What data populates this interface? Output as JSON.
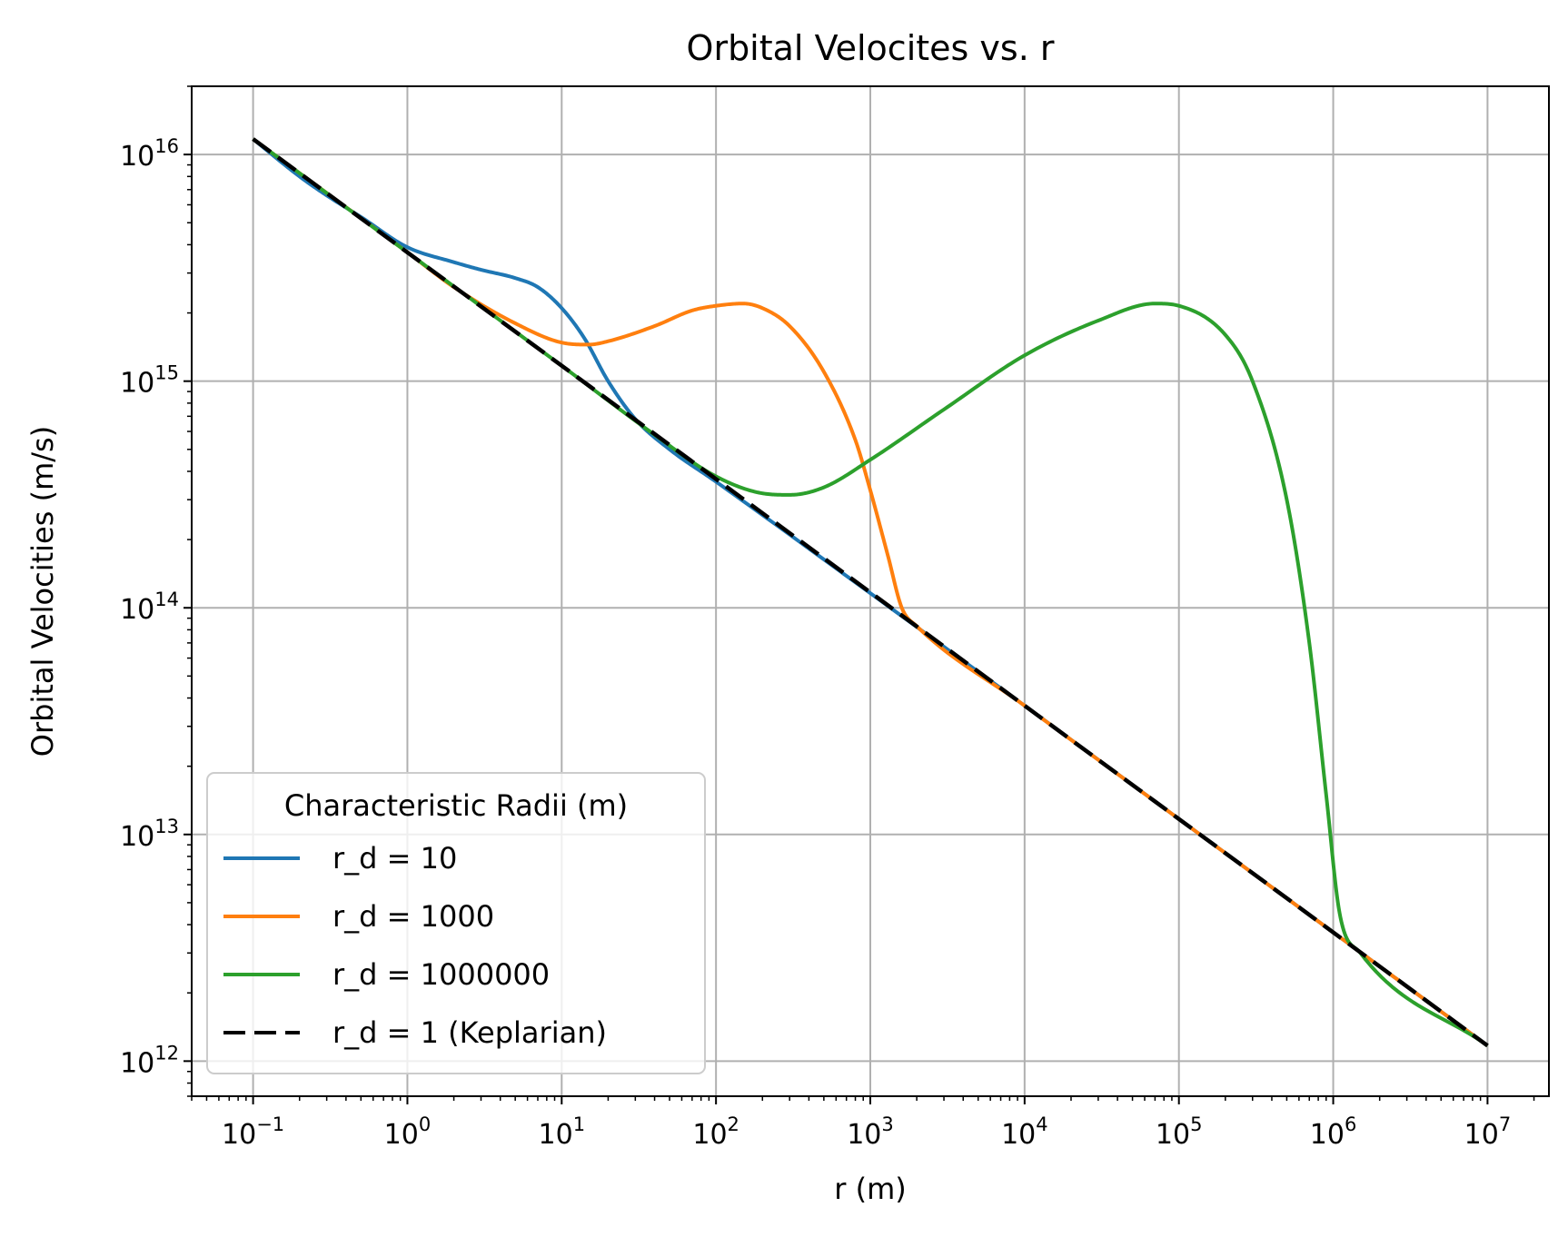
{
  "chart_data": {
    "type": "line",
    "title": "Orbital Velocites vs. r",
    "xlabel": "r (m)",
    "ylabel": "Orbital Velocities (m/s)",
    "xscale": "log",
    "yscale": "log",
    "xlim": [
      0.04,
      25000000
    ],
    "ylim": [
      700000000000,
      20000000000000000
    ],
    "xticks": [
      0.1,
      1,
      10,
      100,
      1000,
      10000,
      100000,
      1000000,
      10000000
    ],
    "xtick_labels": [
      {
        "base": "10",
        "exp": "−1"
      },
      {
        "base": "10",
        "exp": "0"
      },
      {
        "base": "10",
        "exp": "1"
      },
      {
        "base": "10",
        "exp": "2"
      },
      {
        "base": "10",
        "exp": "3"
      },
      {
        "base": "10",
        "exp": "4"
      },
      {
        "base": "10",
        "exp": "5"
      },
      {
        "base": "10",
        "exp": "6"
      },
      {
        "base": "10",
        "exp": "7"
      }
    ],
    "yticks": [
      1000000000000,
      10000000000000,
      100000000000000,
      1000000000000000,
      10000000000000000
    ],
    "ytick_labels": [
      {
        "base": "10",
        "exp": "12"
      },
      {
        "base": "10",
        "exp": "13"
      },
      {
        "base": "10",
        "exp": "14"
      },
      {
        "base": "10",
        "exp": "15"
      },
      {
        "base": "10",
        "exp": "16"
      }
    ],
    "grid": true,
    "legend": {
      "title": "Characteristic Radii (m)",
      "location": "lower-left"
    },
    "series": [
      {
        "name": "r_d = 10",
        "color": "#1f77b4",
        "dash": "solid",
        "points": [
          [
            0.1,
            1.17e+16
          ],
          [
            0.2,
            8000000000000000.0
          ],
          [
            0.3,
            6600000000000000.0
          ],
          [
            0.5,
            5300000000000000.0
          ],
          [
            1,
            3900000000000000.0
          ],
          [
            2,
            3350000000000000.0
          ],
          [
            3,
            3100000000000000.0
          ],
          [
            5,
            2850000000000000.0
          ],
          [
            7,
            2600000000000000.0
          ],
          [
            10,
            2100000000000000.0
          ],
          [
            14,
            1550000000000000.0
          ],
          [
            20,
            1000000000000000.0
          ],
          [
            30,
            680000000000000.0
          ],
          [
            50,
            500000000000000.0
          ],
          [
            100,
            360000000000000.0
          ],
          [
            1000,
            116000000000000.0
          ],
          [
            10000,
            37000000000000.0
          ],
          [
            100000,
            11700000000000.0
          ],
          [
            1000000,
            3700000000000.0
          ],
          [
            10000000,
            1170000000000.0
          ]
        ]
      },
      {
        "name": "r_d = 1000",
        "color": "#ff7f0e",
        "dash": "solid",
        "points": [
          [
            0.1,
            1.17e+16
          ],
          [
            1,
            3700000000000000.0
          ],
          [
            2,
            2600000000000000.0
          ],
          [
            5,
            1800000000000000.0
          ],
          [
            10,
            1480000000000000.0
          ],
          [
            15,
            1450000000000000.0
          ],
          [
            20,
            1500000000000000.0
          ],
          [
            40,
            1750000000000000.0
          ],
          [
            70,
            2050000000000000.0
          ],
          [
            100,
            2150000000000000.0
          ],
          [
            150,
            2200000000000000.0
          ],
          [
            200,
            2100000000000000.0
          ],
          [
            300,
            1750000000000000.0
          ],
          [
            500,
            1100000000000000.0
          ],
          [
            800,
            550000000000000.0
          ],
          [
            1000,
            330000000000000.0
          ],
          [
            1300,
            170000000000000.0
          ],
          [
            1600,
            100000000000000.0
          ],
          [
            2000,
            83000000000000.0
          ],
          [
            10000,
            37000000000000.0
          ],
          [
            100000,
            11700000000000.0
          ],
          [
            1000000,
            3700000000000.0
          ],
          [
            10000000,
            1170000000000.0
          ]
        ]
      },
      {
        "name": "r_d = 1000000",
        "color": "#2ca02c",
        "dash": "solid",
        "points": [
          [
            0.1,
            1.17e+16
          ],
          [
            1,
            3700000000000000.0
          ],
          [
            10,
            1170000000000000.0
          ],
          [
            40,
            580000000000000.0
          ],
          [
            100,
            380000000000000.0
          ],
          [
            200,
            320000000000000.0
          ],
          [
            300,
            315000000000000.0
          ],
          [
            500,
            340000000000000.0
          ],
          [
            1000,
            450000000000000.0
          ],
          [
            3000,
            750000000000000.0
          ],
          [
            10000,
            1300000000000000.0
          ],
          [
            30000,
            1850000000000000.0
          ],
          [
            70000,
            2200000000000000.0
          ],
          [
            100000,
            2150000000000000.0
          ],
          [
            200000,
            1600000000000000.0
          ],
          [
            300000,
            1000000000000000.0
          ],
          [
            500000,
            300000000000000.0
          ],
          [
            700000,
            70000000000000.0
          ],
          [
            900000,
            15000000000000.0
          ],
          [
            1100000,
            4500000000000.0
          ],
          [
            1500000,
            3000000000000.0
          ],
          [
            10000000,
            1170000000000.0
          ]
        ]
      },
      {
        "name": "r_d = 1 (Keplarian)",
        "color": "#000000",
        "dash": "dashed",
        "points": [
          [
            0.1,
            1.17e+16
          ],
          [
            10000000,
            1170000000000.0
          ]
        ]
      }
    ]
  }
}
